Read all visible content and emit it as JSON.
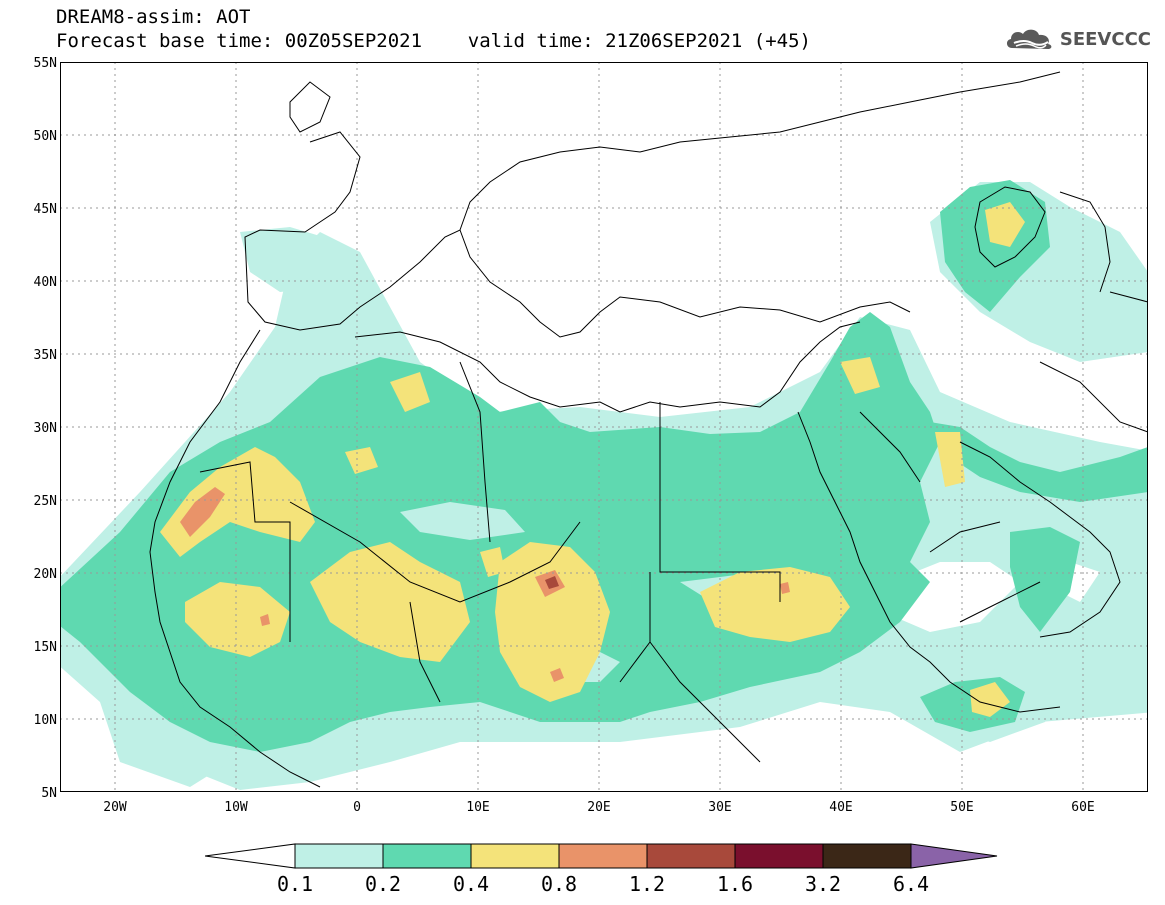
{
  "header": {
    "line1": "DREAM8-assim: AOT",
    "line2": "Forecast base time: 00Z05SEP2021    valid time: 21Z06SEP2021 (+45)"
  },
  "logo": {
    "text": "SEEVCCC",
    "icon": "cloud-icon"
  },
  "map": {
    "lat_labels": [
      "55N",
      "50N",
      "45N",
      "40N",
      "35N",
      "30N",
      "25N",
      "20N",
      "15N",
      "10N",
      "5N"
    ],
    "lon_labels": [
      "20W",
      "10W",
      "0",
      "10E",
      "20E",
      "30E",
      "40E",
      "50E",
      "60E"
    ]
  },
  "colorbar": {
    "labels": [
      "0.1",
      "0.2",
      "0.4",
      "0.8",
      "1.2",
      "1.6",
      "3.2",
      "6.4"
    ],
    "colors": [
      "#bff0e6",
      "#5fd9b0",
      "#f4e37a",
      "#e99369",
      "#a8493b",
      "#7a0f2d",
      "#3b2717",
      "#8a63a8"
    ],
    "under_color": "#ffffff"
  }
}
